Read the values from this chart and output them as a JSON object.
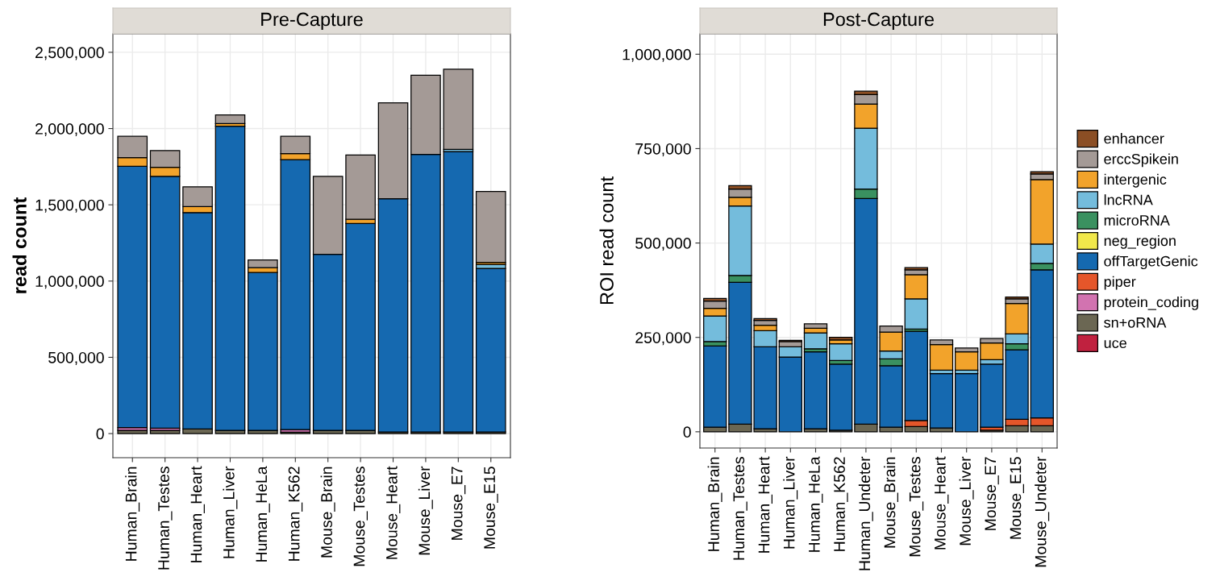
{
  "chart_data": [
    {
      "type": "bar",
      "stacked": true,
      "title": "Pre-Capture",
      "ylabel": "read count",
      "grid": true,
      "legend": false,
      "categories": [
        "Human_Brain",
        "Human_Testes",
        "Human_Heart",
        "Human_Liver",
        "Human_HeLa",
        "Human_K562",
        "Mouse_Brain",
        "Mouse_Testes",
        "Mouse_Heart",
        "Mouse_Liver",
        "Mouse_E7",
        "Mouse_E15"
      ],
      "ylim": [
        -158000,
        2621000
      ],
      "yticks": [
        0,
        {
          "value": 500000,
          "label": "500,000"
        },
        {
          "value": 1000000,
          "label": "1,000,000"
        },
        {
          "value": 1500000,
          "label": "1,500,000"
        },
        {
          "value": 2000000,
          "label": "2,000,000"
        },
        {
          "value": 2500000,
          "label": "2,500,000"
        }
      ],
      "series": [
        {
          "color": "#c0213f",
          "values": [
            0,
            0,
            0,
            0,
            0,
            0,
            0,
            0,
            0,
            0,
            0,
            0
          ]
        },
        {
          "color": "#6b6753",
          "values": [
            21000,
            21000,
            30000,
            21000,
            21000,
            9000,
            21000,
            21000,
            10000,
            10000,
            10000,
            10000
          ]
        },
        {
          "color": "#d273b0",
          "values": [
            18000,
            15000,
            0,
            0,
            0,
            17000,
            0,
            0,
            0,
            0,
            0,
            0
          ]
        },
        {
          "color": "#e5562a",
          "values": [
            0,
            0,
            0,
            0,
            0,
            0,
            0,
            0,
            0,
            0,
            0,
            0
          ]
        },
        {
          "color": "#1569b0",
          "values": [
            1713000,
            1651000,
            1419000,
            1995000,
            1035000,
            1770000,
            1155000,
            1357000,
            1530000,
            1821000,
            1839000,
            1073000
          ]
        },
        {
          "color": "#f1e84b",
          "values": [
            0,
            0,
            0,
            0,
            0,
            0,
            0,
            0,
            0,
            0,
            0,
            0
          ]
        },
        {
          "color": "#3a9160",
          "values": [
            0,
            0,
            0,
            0,
            0,
            0,
            0,
            0,
            0,
            0,
            0,
            0
          ]
        },
        {
          "color": "#74bcdc",
          "values": [
            0,
            0,
            0,
            0,
            0,
            0,
            0,
            0,
            0,
            0,
            14000,
            26000
          ]
        },
        {
          "color": "#f2a32b",
          "values": [
            58000,
            59000,
            39000,
            17000,
            32000,
            40000,
            0,
            27000,
            0,
            0,
            0,
            14000
          ]
        },
        {
          "color": "#a49a96",
          "values": [
            139000,
            110000,
            130000,
            57000,
            51000,
            113000,
            511000,
            422000,
            629000,
            519000,
            526000,
            465000
          ]
        },
        {
          "color": "#8b4e24",
          "values": [
            0,
            0,
            0,
            0,
            0,
            0,
            0,
            0,
            0,
            0,
            0,
            0
          ]
        }
      ]
    },
    {
      "type": "bar",
      "stacked": true,
      "title": "Post-Capture",
      "ylabel": "ROI read count",
      "grid": true,
      "legend": "right",
      "categories": [
        "Human_Brain",
        "Human_Testes",
        "Human_Heart",
        "Human_Liver",
        "Human_HeLa",
        "Human_K562",
        "Human_Undeter",
        "Mouse_Brain",
        "Mouse_Testes",
        "Mouse_Heart",
        "Mouse_Liver",
        "Mouse_E7",
        "Mouse_E15",
        "Mouse_Undeter"
      ],
      "ylim": [
        -43000,
        1054000
      ],
      "yticks": [
        0,
        {
          "value": 250000,
          "label": "250,000"
        },
        {
          "value": 500000,
          "label": "500,000"
        },
        {
          "value": 750000,
          "label": "750,000"
        },
        {
          "value": 1000000,
          "label": "1,000,000"
        }
      ],
      "series": [
        {
          "name": "uce",
          "color": "#c0213f",
          "values": [
            0,
            0,
            0,
            0,
            0,
            0,
            0,
            0,
            0,
            0,
            0,
            0,
            0,
            0
          ]
        },
        {
          "name": "sn+oRNA",
          "color": "#6b6753",
          "values": [
            12000,
            20000,
            8000,
            0,
            8000,
            4000,
            20000,
            12000,
            14000,
            10000,
            0,
            4000,
            16000,
            16000
          ]
        },
        {
          "name": "protein_coding",
          "color": "#d273b0",
          "values": [
            0,
            0,
            0,
            0,
            0,
            0,
            0,
            0,
            0,
            0,
            0,
            0,
            0,
            0
          ]
        },
        {
          "name": "piper",
          "color": "#e5562a",
          "values": [
            0,
            0,
            0,
            0,
            0,
            0,
            0,
            0,
            16000,
            0,
            0,
            8000,
            17000,
            21000
          ]
        },
        {
          "name": "offTargetGenic",
          "color": "#1569b0",
          "values": [
            215000,
            376000,
            217000,
            198000,
            204000,
            175000,
            598000,
            163000,
            236000,
            144000,
            154000,
            167000,
            184000,
            392000
          ]
        },
        {
          "name": "neg_region",
          "color": "#f1e84b",
          "values": [
            0,
            0,
            0,
            0,
            0,
            0,
            0,
            0,
            0,
            0,
            0,
            0,
            0,
            0
          ]
        },
        {
          "name": "microRNA",
          "color": "#3a9160",
          "values": [
            12000,
            18000,
            0,
            0,
            8000,
            10000,
            25000,
            18000,
            6000,
            0,
            0,
            0,
            16000,
            17000
          ]
        },
        {
          "name": "lncRNA",
          "color": "#74bcdc",
          "values": [
            68000,
            184000,
            43000,
            27000,
            42000,
            44000,
            161000,
            21000,
            80000,
            9000,
            9000,
            12000,
            26000,
            51000
          ]
        },
        {
          "name": "intergenic",
          "color": "#f2a32b",
          "values": [
            20000,
            23000,
            14000,
            0,
            12000,
            10000,
            64000,
            50000,
            64000,
            68000,
            49000,
            44000,
            81000,
            171000
          ]
        },
        {
          "name": "erccSpikein",
          "color": "#a49a96",
          "values": [
            19000,
            22000,
            13000,
            14000,
            12000,
            0,
            25000,
            16000,
            13000,
            12000,
            10000,
            12000,
            12000,
            15000
          ]
        },
        {
          "name": "enhancer",
          "color": "#8b4e24",
          "values": [
            7000,
            9000,
            5000,
            3000,
            0,
            7000,
            9000,
            0,
            6000,
            0,
            0,
            0,
            5000,
            6000
          ]
        }
      ]
    }
  ]
}
